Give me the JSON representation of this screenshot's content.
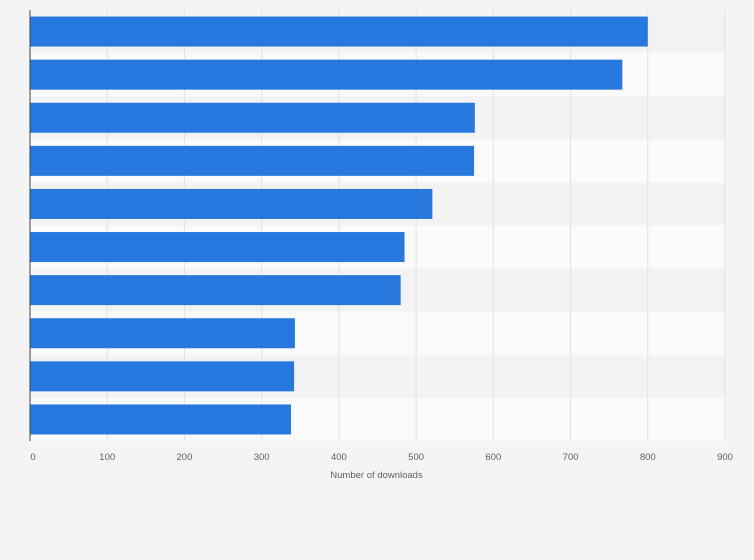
{
  "chart_data": {
    "type": "bar",
    "orientation": "horizontal",
    "title": "",
    "xlabel": "Number of downloads",
    "ylabel": "",
    "categories": [
      "",
      "",
      "",
      "",
      "",
      "",
      "",
      "",
      "",
      ""
    ],
    "values": [
      800,
      767,
      576,
      575,
      521,
      485,
      480,
      343,
      342,
      338
    ],
    "xlim": [
      0,
      900
    ],
    "xticks": [
      0,
      100,
      200,
      300,
      400,
      500,
      600,
      700,
      800,
      900
    ],
    "grid": true,
    "legend": "none",
    "bar_color": "#2677de",
    "band_colors": [
      "#f3f3f3",
      "#fafafa"
    ]
  }
}
